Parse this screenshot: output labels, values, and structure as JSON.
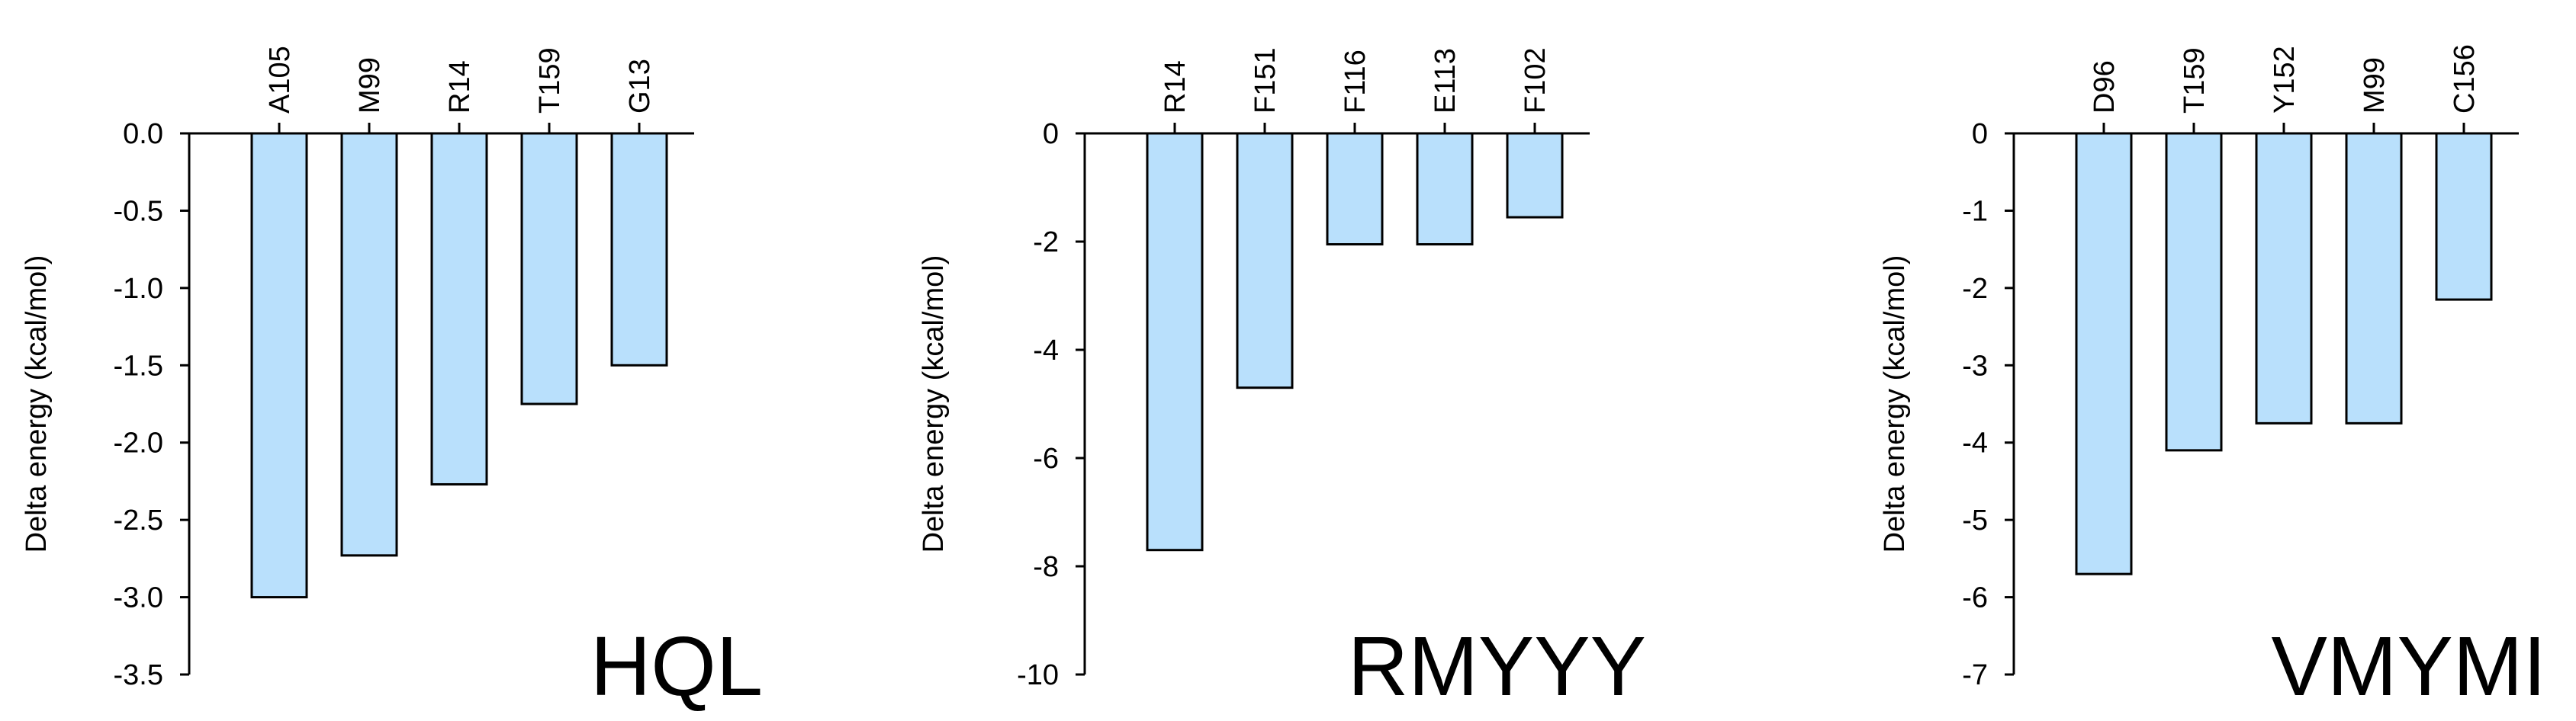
{
  "chart_data": [
    {
      "type": "bar",
      "title": "HQL",
      "ylabel": "Delta energy (kcal/mol)",
      "categories": [
        "A105",
        "M99",
        "R14",
        "T159",
        "G13"
      ],
      "values": [
        -3.0,
        -2.73,
        -2.27,
        -1.75,
        -1.5
      ],
      "ylim": [
        -3.5,
        0.0
      ],
      "yticks": [
        "0.0",
        "-0.5",
        "-1.0",
        "-1.5",
        "-2.0",
        "-2.5",
        "-3.0",
        "-3.5"
      ],
      "ytick_values": [
        0,
        -0.5,
        -1.0,
        -1.5,
        -2.0,
        -2.5,
        -3.0,
        -3.5
      ],
      "category_axis": "top",
      "grid": false,
      "bar_color": "#b9e0fc"
    },
    {
      "type": "bar",
      "title": "RMYYY",
      "ylabel": "Delta energy (kcal/mol)",
      "categories": [
        "R14",
        "F151",
        "F116",
        "E113",
        "F102"
      ],
      "values": [
        -7.7,
        -4.7,
        -2.05,
        -2.05,
        -1.55
      ],
      "ylim": [
        -10,
        0
      ],
      "yticks": [
        "0",
        "-2",
        "-4",
        "-6",
        "-8",
        "-10"
      ],
      "ytick_values": [
        0,
        -2,
        -4,
        -6,
        -8,
        -10
      ],
      "category_axis": "top",
      "grid": false,
      "bar_color": "#b9e0fc"
    },
    {
      "type": "bar",
      "title": "VMYMI",
      "ylabel": "Delta energy (kcal/mol)",
      "categories": [
        "D96",
        "T159",
        "Y152",
        "M99",
        "C156"
      ],
      "values": [
        -5.7,
        -4.1,
        -3.75,
        -3.75,
        -2.15
      ],
      "ylim": [
        -7,
        0
      ],
      "yticks": [
        "0",
        "-1",
        "-2",
        "-3",
        "-4",
        "-5",
        "-6",
        "-7"
      ],
      "ytick_values": [
        0,
        -1,
        -2,
        -3,
        -4,
        -5,
        -6,
        -7
      ],
      "category_axis": "top",
      "grid": false,
      "bar_color": "#b9e0fc"
    }
  ]
}
